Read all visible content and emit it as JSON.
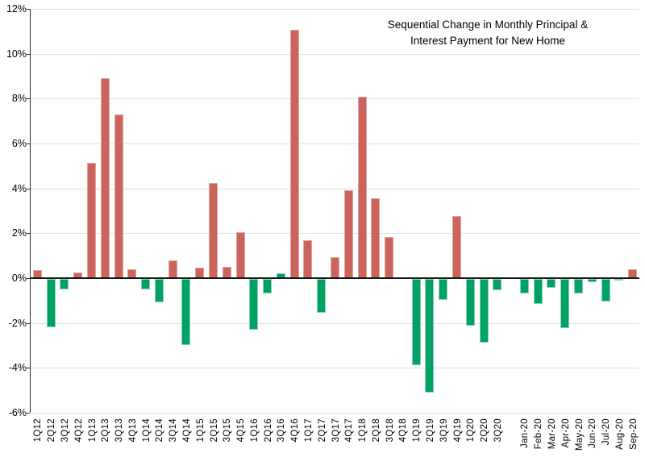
{
  "title": {
    "line1": "Sequential Change in Monthly Principal &",
    "line2": "Interest Payment for New Home"
  },
  "palette": {
    "increase_bar": "#cb635f",
    "increase_border": "#e0a49e",
    "decrease_bar": "#00a165",
    "decrease_border": "#8ad2b0",
    "zero_line": "#1a1a1a",
    "gridline": "#e2e2e2",
    "axis_line": "#2b2b2b",
    "text": "#000000",
    "background": "#ffffff"
  },
  "y_axis": {
    "ticks": [
      {
        "label": "12%",
        "value": 12
      },
      {
        "label": "10%",
        "value": 10
      },
      {
        "label": "8%",
        "value": 8
      },
      {
        "label": "6%",
        "value": 6
      },
      {
        "label": "4%",
        "value": 4
      },
      {
        "label": "2%",
        "value": 2
      },
      {
        "label": "0%",
        "value": 0
      },
      {
        "label": "-2%",
        "value": -2
      },
      {
        "label": "-4%",
        "value": -4
      },
      {
        "label": "-6%",
        "value": -6
      }
    ]
  },
  "chart_data": {
    "type": "bar",
    "title": "Sequential Change in Monthly Principal & Interest Payment for New Home",
    "xlabel": "",
    "ylabel": "",
    "ylim": [
      -6,
      12
    ],
    "y_tick_step": 2,
    "y_tick_format": "percent",
    "grid": true,
    "legend": "none",
    "unit": "percent",
    "points": [
      {
        "label": "1Q12",
        "value": 0.35,
        "color": "up"
      },
      {
        "label": "2Q12",
        "value": -2.15,
        "color": "down"
      },
      {
        "label": "3Q12",
        "value": -0.45,
        "color": "down"
      },
      {
        "label": "4Q12",
        "value": 0.25,
        "color": "up"
      },
      {
        "label": "1Q13",
        "value": 5.15,
        "color": "up"
      },
      {
        "label": "2Q13",
        "value": 8.9,
        "color": "up"
      },
      {
        "label": "3Q13",
        "value": 7.3,
        "color": "up"
      },
      {
        "label": "4Q13",
        "value": 0.4,
        "color": "up"
      },
      {
        "label": "1Q14",
        "value": -0.45,
        "color": "down"
      },
      {
        "label": "2Q14",
        "value": -1.05,
        "color": "down"
      },
      {
        "label": "3Q14",
        "value": 0.8,
        "color": "up"
      },
      {
        "label": "4Q14",
        "value": -2.95,
        "color": "down"
      },
      {
        "label": "1Q15",
        "value": 0.45,
        "color": "up"
      },
      {
        "label": "2Q15",
        "value": 4.25,
        "color": "up"
      },
      {
        "label": "3Q15",
        "value": 0.5,
        "color": "up"
      },
      {
        "label": "4Q15",
        "value": 2.05,
        "color": "up"
      },
      {
        "label": "1Q16",
        "value": -2.25,
        "color": "down"
      },
      {
        "label": "2Q16",
        "value": -0.65,
        "color": "down"
      },
      {
        "label": "3Q16",
        "value": 0.2,
        "color": "down"
      },
      {
        "label": "4Q16",
        "value": 11.05,
        "color": "up"
      },
      {
        "label": "1Q17",
        "value": 1.7,
        "color": "up"
      },
      {
        "label": "2Q17",
        "value": -1.5,
        "color": "down"
      },
      {
        "label": "3Q17",
        "value": 0.95,
        "color": "up"
      },
      {
        "label": "4Q17",
        "value": 3.9,
        "color": "up"
      },
      {
        "label": "1Q18",
        "value": 8.1,
        "color": "up"
      },
      {
        "label": "2Q18",
        "value": 3.55,
        "color": "up"
      },
      {
        "label": "3Q18",
        "value": 1.85,
        "color": "up"
      },
      {
        "label": "4Q18",
        "value": 0,
        "color": "up"
      },
      {
        "label": "1Q19",
        "value": -3.85,
        "color": "down"
      },
      {
        "label": "2Q19",
        "value": -5.05,
        "color": "down"
      },
      {
        "label": "3Q19",
        "value": -0.95,
        "color": "down"
      },
      {
        "label": "4Q19",
        "value": 2.75,
        "color": "up"
      },
      {
        "label": "1Q20",
        "value": -2.1,
        "color": "down"
      },
      {
        "label": "2Q20",
        "value": -2.85,
        "color": "down"
      },
      {
        "label": "3Q20",
        "value": -0.5,
        "color": "down"
      },
      {
        "label": "",
        "value": null,
        "color": "none"
      },
      {
        "label": "Jan-20",
        "value": -0.65,
        "color": "down"
      },
      {
        "label": "Feb-20",
        "value": -1.1,
        "color": "down"
      },
      {
        "label": "Mar-20",
        "value": -0.4,
        "color": "down"
      },
      {
        "label": "Apr-20",
        "value": -2.2,
        "color": "down"
      },
      {
        "label": "May-20",
        "value": -0.65,
        "color": "down"
      },
      {
        "label": "Jun-20",
        "value": -0.15,
        "color": "down"
      },
      {
        "label": "Jul-20",
        "value": -1.0,
        "color": "down"
      },
      {
        "label": "Aug-20",
        "value": -0.05,
        "color": "down"
      },
      {
        "label": "Sep-20",
        "value": 0.4,
        "color": "up"
      }
    ]
  }
}
